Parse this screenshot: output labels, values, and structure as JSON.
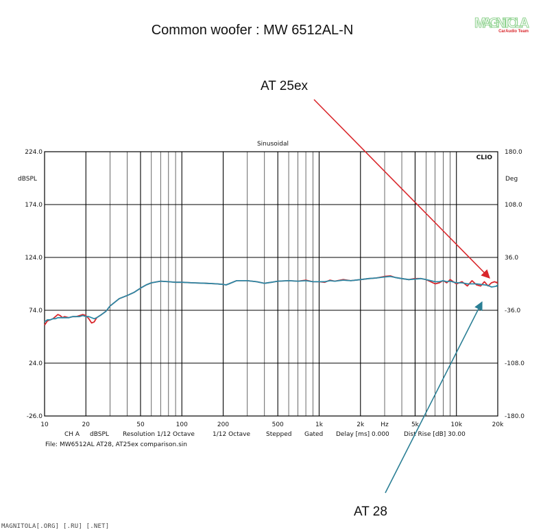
{
  "header": {
    "title": "Common woofer : MW 6512AL-N"
  },
  "logo": {
    "word": "MAGNITOLA",
    "sub": "CarAudio Team"
  },
  "annotations": {
    "top": "AT 25ex",
    "bottom": "AT 28"
  },
  "footer": {
    "text": "MAGNITOLA[.ORG] [.RU] [.NET]"
  },
  "colors": {
    "red_series": "#d9262b",
    "blue_series": "#2b89a6",
    "grid": "#000000"
  },
  "chart_data": {
    "type": "line",
    "title": "Sinusoidal",
    "brand": "CLIO",
    "xscale": "log",
    "xlim": [
      10,
      20000
    ],
    "ylim": [
      -26,
      224
    ],
    "y2lim": [
      -180,
      180
    ],
    "ylabel": "dBSPL",
    "y2label": "Deg",
    "xunit": "Hz",
    "x_ticks": [
      10,
      20,
      50,
      100,
      200,
      500,
      1000,
      2000,
      5000,
      10000,
      20000
    ],
    "x_tick_labels": [
      "10",
      "20",
      "50",
      "100",
      "200",
      "500",
      "1k",
      "2k",
      "5k",
      "10k",
      "20k"
    ],
    "y_ticks": [
      224,
      174,
      124,
      74,
      24,
      -26
    ],
    "y_tick_labels": [
      "224.0",
      "174.0",
      "124.0",
      "74.0",
      "24.0",
      "-26.0"
    ],
    "y2_tick_labels": [
      "180.0",
      "108.0",
      "36.0",
      "-36.0",
      "-108.0",
      "-180.0"
    ],
    "grid": true,
    "info_line": [
      "CH A",
      "dBSPL",
      "Resolution 1/12 Octave",
      "1/12 Octave",
      "Stepped",
      "Gated",
      "Delay [ms] 0.000",
      "Dist Rise [dB] 30.00"
    ],
    "file_line": "File: MW6512AL AT28, AT25ex comparison.sin",
    "series": [
      {
        "name": "AT 25ex",
        "color": "#d9262b",
        "x": [
          10,
          10.5,
          11,
          11.5,
          12,
          12.5,
          13,
          13.5,
          14,
          15,
          16,
          17,
          18,
          19,
          20,
          21,
          22,
          23,
          24,
          26,
          28,
          30,
          35,
          40,
          45,
          50,
          55,
          60,
          70,
          80,
          90,
          100,
          120,
          150,
          180,
          200,
          210,
          220,
          250,
          300,
          350,
          400,
          450,
          500,
          600,
          700,
          800,
          900,
          1000,
          1100,
          1200,
          1300,
          1500,
          1700,
          2000,
          2300,
          2600,
          3000,
          3300,
          3600,
          4000,
          4500,
          5000,
          5500,
          6000,
          6500,
          7000,
          7500,
          8000,
          8500,
          9000,
          10000,
          11000,
          12000,
          13000,
          14000,
          15000,
          16000,
          17000,
          18000,
          19000,
          20000,
          22000
        ],
        "y": [
          60,
          64,
          65,
          66,
          68,
          70,
          69,
          67,
          68,
          67,
          68,
          68,
          69,
          70,
          69,
          66,
          62,
          63,
          67,
          70,
          73,
          78,
          85,
          88,
          91,
          95,
          98,
          100,
          101.5,
          101,
          100.5,
          100.5,
          100,
          99.5,
          99,
          98.5,
          98,
          99,
          102,
          102,
          101,
          99.5,
          100.5,
          101.5,
          102,
          101.5,
          102.5,
          101,
          101,
          100.5,
          102.5,
          101.5,
          103,
          102,
          103,
          104,
          104.5,
          106,
          106.5,
          105,
          104,
          103,
          104,
          104,
          103,
          101,
          99,
          100,
          102,
          100,
          103,
          99,
          101,
          97,
          102,
          98,
          97,
          101,
          97,
          100,
          101,
          100,
          101
        ]
      },
      {
        "name": "AT 28",
        "color": "#2b89a6",
        "x": [
          10,
          10.5,
          11,
          11.5,
          12,
          12.5,
          13,
          13.5,
          14,
          15,
          16,
          17,
          18,
          19,
          20,
          21,
          22,
          23,
          24,
          26,
          28,
          30,
          35,
          40,
          45,
          50,
          55,
          60,
          70,
          80,
          90,
          100,
          120,
          150,
          180,
          200,
          210,
          220,
          250,
          300,
          350,
          400,
          450,
          500,
          600,
          700,
          800,
          900,
          1000,
          1100,
          1200,
          1300,
          1500,
          1700,
          2000,
          2300,
          2600,
          3000,
          3300,
          3600,
          4000,
          4500,
          5000,
          5500,
          6000,
          6500,
          7000,
          7500,
          8000,
          8500,
          9000,
          10000,
          11000,
          12000,
          13000,
          14000,
          15000,
          16000,
          17000,
          18000,
          19000,
          20000,
          22000
        ],
        "y": [
          63,
          65,
          65,
          66,
          66,
          67,
          67,
          67,
          67,
          67,
          68,
          68,
          68,
          69,
          68,
          68,
          67,
          66,
          67,
          70,
          73,
          78,
          85,
          88,
          91,
          95,
          98,
          100,
          101.5,
          101,
          100.5,
          100.5,
          100,
          99.5,
          99,
          98.5,
          98,
          99,
          102,
          102,
          101,
          99.5,
          100.5,
          101.5,
          102,
          101.5,
          102,
          101,
          101,
          101,
          102,
          101.5,
          102.5,
          102,
          103,
          104,
          104.5,
          105.5,
          106,
          105,
          104,
          103,
          103.5,
          104,
          103,
          102,
          101,
          101,
          102,
          101,
          101.5,
          100,
          100,
          99,
          99,
          99,
          98.5,
          98,
          97.5,
          96,
          96.5,
          97,
          98
        ]
      }
    ]
  }
}
